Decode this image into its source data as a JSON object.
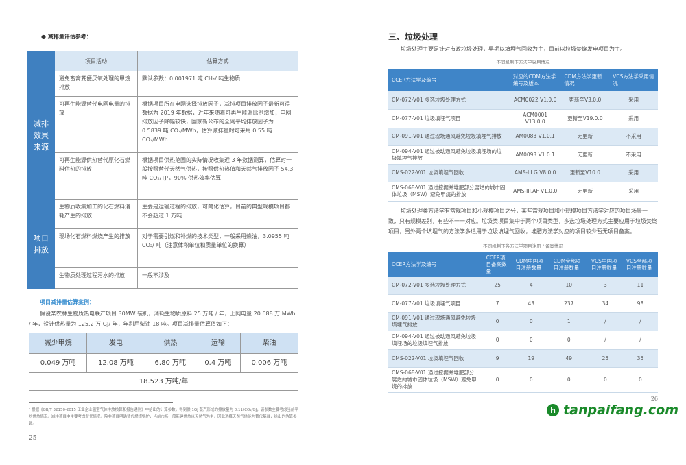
{
  "left": {
    "heading": "● 减排量评估参考：",
    "ref_table": {
      "headers": [
        "项目活动",
        "估算方式"
      ],
      "groups": [
        {
          "label": "减排效果来源",
          "rows": [
            [
              "避免畜禽粪便厌氧处理的甲烷排放",
              "默认参数：0.001971 吨 CH₄/ 吨生物质"
            ],
            [
              "可再生能源替代电网电量的排放",
              "根据项目所在电网选择排放因子，减排项目排放因子最新可得数据为 2019 年数据，近年来随着可再生能源比例增加，电网排放因子降幅较快，国家新公布的全网平均排放因子为 0.5839 吨 CO₂/MWh，估算减排量时可采用 0.55 吨 CO₂/MWh"
            ],
            [
              "可再生能源供热替代原化石燃料供热的排放",
              "根据项目供热范围的实际情况收集近 3 年数据测算，估算时一般按照替代天然气供热，按照供热热值和天然气排放因子 54.3 吨 CO₂/TJ¹，90% 供热效率估算"
            ]
          ]
        },
        {
          "label": "项目排放",
          "rows": [
            [
              "生物质收集加工的化石燃料消耗产生的排放",
              "主要是运输过程的排放，可简化估算，目前的典型规模项目都不会超过 1 万吨"
            ],
            [
              "现场化石燃料燃烧产生的排放",
              "对于需要引燃和补燃的技术类型，一般采用柴油，3.0955 吨 CO₂/ 吨（注意体积单位和质量单位的换算）"
            ],
            [
              "生物质处理过程污水的排放",
              "一般不涉及"
            ]
          ]
        }
      ]
    },
    "case_title": "项目减排量估算案例：",
    "case_text": "假设某农林生物质热电联产项目 30MW 装机，消耗生物质原料 25 万吨 / 年，上网电量 20.688 万 MWh / 年，设计供热量为 125.2 万 GJ/ 年，年利用柴油 18 吨。项目减排量估算值如下：",
    "summary": {
      "headers": [
        "减少甲烷",
        "发电",
        "供热",
        "运输",
        "柴油"
      ],
      "values": [
        "0.049 万吨",
        "12.08 万吨",
        "6.80 万吨",
        "0.4 万吨",
        "0.006 万吨"
      ],
      "total": "18.523 万吨/年"
    },
    "footnote": "¹ 根据《GB/T 32150-2015 工业企业温室气体排放核算和报告通则》中给出的计算参数，得到供 1GJ 蒸汽形成的排放量为 0.11tCO₂/GJ，该参数主要考虑当前平均供热情况，减排项目中主要考虑替代情况，除非项目明确替代燃煤锅炉，当前市场一般新建供热以天然气为主，因此选择天然气供能为替代基准，给出的估算参数。",
    "page_number": "25"
  },
  "right": {
    "title": "三、垃圾处理",
    "intro": "垃圾处理主要是针对市政垃圾处理，早期以填埋气回收为主，目前以垃圾焚烧发电项目为主。",
    "table1": {
      "caption": "不同机制下方法学采用情况",
      "headers": [
        "CCER方法学及编号",
        "对应的CDM方法学编号及版本",
        "CDM方法学更新情况",
        "VCS方法学采用情况"
      ],
      "rows": [
        [
          "CM-072-V01 多选垃圾处理方式",
          "ACM0022 V1.0.0",
          "更新至V3.0.0",
          "采用"
        ],
        [
          "CM-077-V01 垃圾填埋气项目",
          "ACM0001 V13.0.0",
          "更新至V19.0.0",
          "采用"
        ],
        [
          "CM-091-V01 通过现场通风避免垃圾填埋气排放",
          "AM0083 V1.0.1",
          "无更新",
          "不采用"
        ],
        [
          "CM-094-V01 通过被动通风避免垃圾填埋场的垃圾填埋气排放",
          "AM0093 V1.0.1",
          "无更新",
          "不采用"
        ],
        [
          "CMS-022-V01 垃圾填埋气回收",
          "AMS-III.G V8.0.0",
          "更新至V10.0",
          "采用"
        ],
        [
          "CMS-068-V01 通过挖掘并堆肥部分腐烂的城市固体垃圾（MSW）避免甲烷的排放",
          "AMS-III.AF V1.0.0",
          "无更新",
          "采用"
        ]
      ]
    },
    "paragraph": "垃圾处理类方法学有常规项目和小规模项目之分，某些常规项目和小规模项目方法学对应的项目场景一致，只有规模差别，有些不一一对应。垃圾类项目集中于两个项目类型，多选垃圾处理方式主要应用于垃圾焚烧项目，另外两个填埋气的方法学多适用于垃圾填埋气回收，堆肥方法学对应的项目较少暂无项目备案。",
    "table2": {
      "caption": "不同机制下各方法学项目注册 / 备案情况",
      "headers": [
        "CCER方法学及编号",
        "CCER项目备案数量",
        "CDM中国项目注册数量",
        "CDM全部项目注册数量",
        "VCS中国项目注册数量",
        "VCS全部项目注册数量"
      ],
      "rows": [
        [
          "CM-072-V01 多选垃圾处理方式",
          "25",
          "4",
          "10",
          "3",
          "11"
        ],
        [
          "CM-077-V01 垃圾填埋气项目",
          "7",
          "43",
          "237",
          "34",
          "98"
        ],
        [
          "CM-091-V01 通过现场通风避免垃圾填埋气排放",
          "0",
          "0",
          "1",
          "/",
          "/"
        ],
        [
          "CM-094-V01 通过被动通风避免垃圾填埋场的垃圾填埋气排放",
          "0",
          "0",
          "0",
          "/",
          "/"
        ],
        [
          "CMS-022-V01 垃圾填埋气回收",
          "9",
          "19",
          "49",
          "25",
          "35"
        ],
        [
          "CMS-068-V01 通过挖掘并堆肥部分腐烂的城市固体垃圾（MSW）避免甲烷的排放",
          "0",
          "0",
          "0",
          "0",
          "0"
        ]
      ]
    },
    "page_number": "26"
  },
  "watermark": {
    "text": "tanpaifang.com",
    "color": "#1a8a2a"
  },
  "colors": {
    "accent": "#3f80c0",
    "header_light": "#d9e7f4",
    "row_alt": "#dce9f5",
    "case_title": "#3b8fd0"
  }
}
